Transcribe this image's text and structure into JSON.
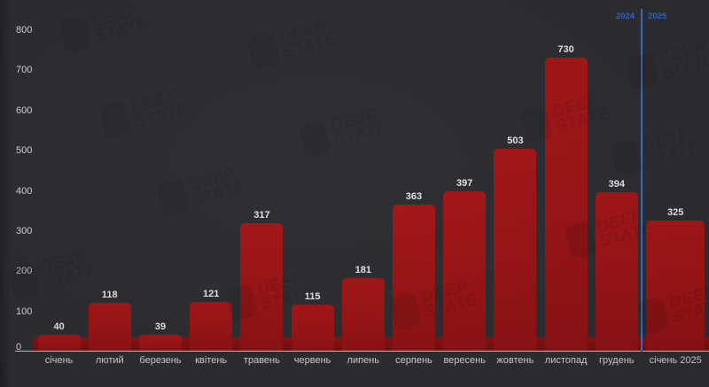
{
  "chart_data": {
    "type": "bar",
    "title": "",
    "xlabel": "",
    "ylabel": "",
    "categories": [
      "січень",
      "лютий",
      "березень",
      "квітень",
      "травень",
      "червень",
      "липень",
      "серпень",
      "вересень",
      "жовтень",
      "листопад",
      "грудень",
      "січень 2025"
    ],
    "values": [
      40,
      118,
      39,
      121,
      317,
      115,
      181,
      363,
      397,
      503,
      730,
      394,
      325
    ],
    "ylim": [
      0,
      800
    ],
    "yticks": [
      0,
      100,
      200,
      300,
      400,
      500,
      600,
      700,
      800
    ],
    "grid": false,
    "legend": "none",
    "bar_color": "#a01314",
    "background_color": "#2b2c30",
    "divider_color": "#3f68c9",
    "year_divider": {
      "left_label": "2024",
      "right_label": "2025",
      "position": "between грудень and січень 2025"
    }
  },
  "watermark": {
    "line1": "DEEP",
    "line2": "STATE"
  }
}
